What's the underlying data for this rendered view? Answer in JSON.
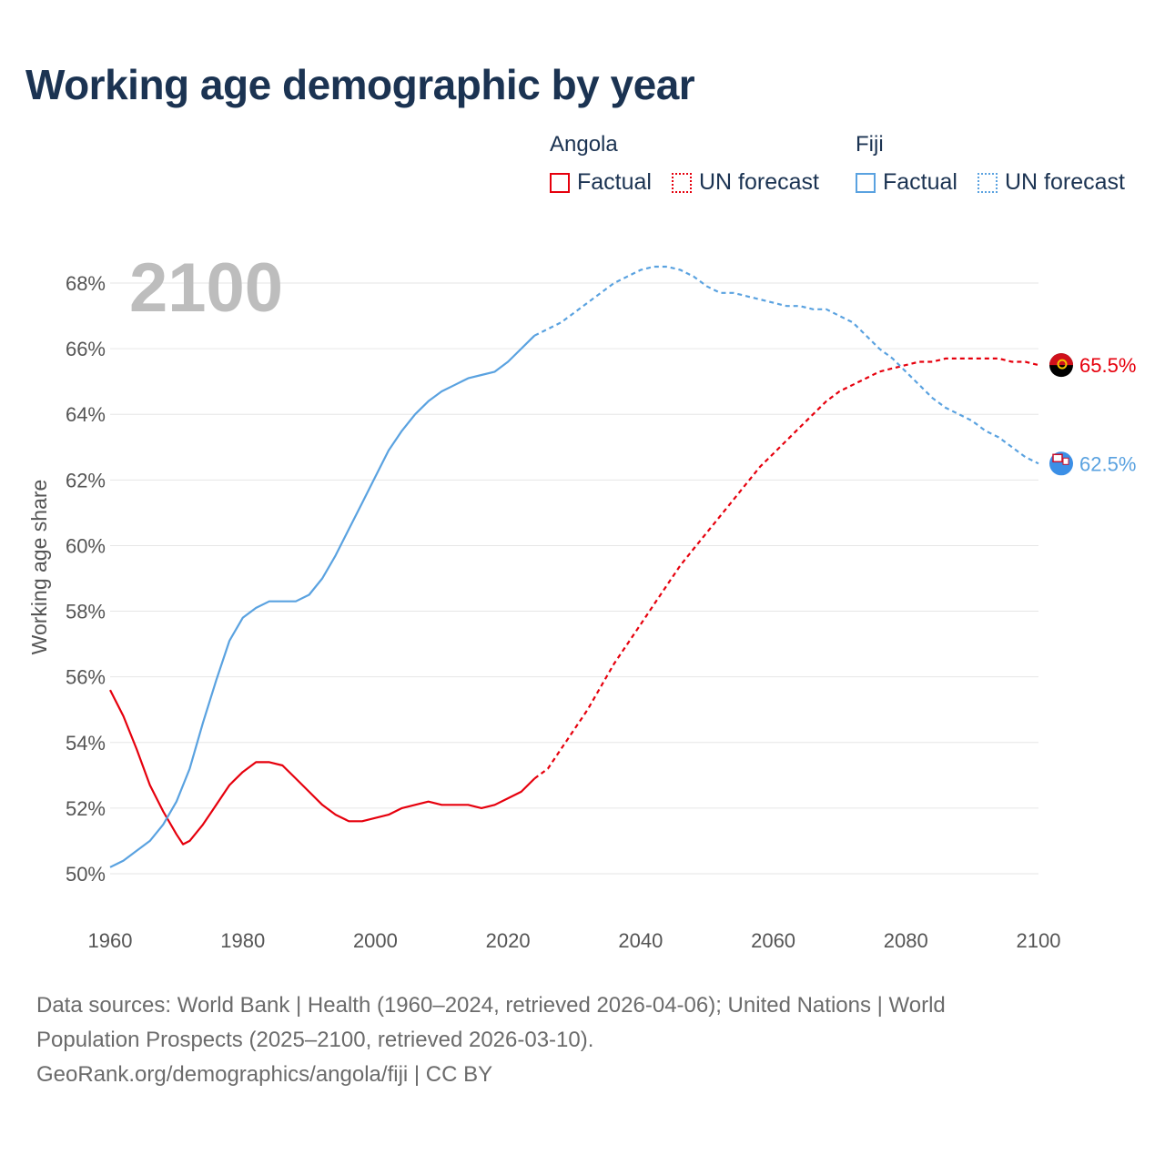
{
  "title": "Working age demographic by year",
  "legend": {
    "groups": [
      {
        "name": "Angola",
        "factual_label": "Factual",
        "forecast_label": "UN forecast",
        "color": "#e6000d"
      },
      {
        "name": "Fiji",
        "factual_label": "Factual",
        "forecast_label": "UN forecast",
        "color": "#5aa2e0"
      }
    ]
  },
  "footer": {
    "line1": "Data sources: World Bank | Health (1960–2024, retrieved 2026-04-06); United Nations | World",
    "line2": "Population Prospects (2025–2100, retrieved 2026-03-10).",
    "line3": "GeoRank.org/demographics/angola/fiji | CC BY"
  },
  "chart_data": {
    "type": "line",
    "title": "Working age demographic by year",
    "current_year_label": "2100",
    "xlabel": "",
    "ylabel": "Working age share",
    "xlim": [
      1960,
      2100
    ],
    "ylim": [
      49,
      69
    ],
    "x_ticks": [
      1960,
      1980,
      2000,
      2020,
      2040,
      2060,
      2080,
      2100
    ],
    "x_tick_labels": [
      "1960",
      "1980",
      "2000",
      "2020",
      "2040",
      "2060",
      "2080",
      "2100"
    ],
    "y_ticks": [
      50,
      52,
      54,
      56,
      58,
      60,
      62,
      64,
      66,
      68
    ],
    "y_tick_labels": [
      "50%",
      "52%",
      "54%",
      "56%",
      "58%",
      "60%",
      "62%",
      "64%",
      "66%",
      "68%"
    ],
    "grid": true,
    "forecast_start_year": 2024,
    "series": [
      {
        "name": "Angola",
        "color": "#e6000d",
        "end_label": "65.5%",
        "end_value": 65.5,
        "flag_icon": "angola-flag-icon",
        "points": [
          [
            1960,
            55.6
          ],
          [
            1962,
            54.8
          ],
          [
            1964,
            53.8
          ],
          [
            1966,
            52.7
          ],
          [
            1968,
            51.9
          ],
          [
            1970,
            51.2
          ],
          [
            1971,
            50.9
          ],
          [
            1972,
            51.0
          ],
          [
            1974,
            51.5
          ],
          [
            1976,
            52.1
          ],
          [
            1978,
            52.7
          ],
          [
            1980,
            53.1
          ],
          [
            1982,
            53.4
          ],
          [
            1984,
            53.4
          ],
          [
            1986,
            53.3
          ],
          [
            1988,
            52.9
          ],
          [
            1990,
            52.5
          ],
          [
            1992,
            52.1
          ],
          [
            1994,
            51.8
          ],
          [
            1996,
            51.6
          ],
          [
            1998,
            51.6
          ],
          [
            2000,
            51.7
          ],
          [
            2002,
            51.8
          ],
          [
            2004,
            52.0
          ],
          [
            2006,
            52.1
          ],
          [
            2008,
            52.2
          ],
          [
            2010,
            52.1
          ],
          [
            2012,
            52.1
          ],
          [
            2014,
            52.1
          ],
          [
            2016,
            52.0
          ],
          [
            2018,
            52.1
          ],
          [
            2020,
            52.3
          ],
          [
            2022,
            52.5
          ],
          [
            2024,
            52.9
          ],
          [
            2026,
            53.2
          ],
          [
            2028,
            53.8
          ],
          [
            2030,
            54.4
          ],
          [
            2032,
            55.0
          ],
          [
            2034,
            55.7
          ],
          [
            2036,
            56.4
          ],
          [
            2038,
            57.0
          ],
          [
            2040,
            57.6
          ],
          [
            2042,
            58.2
          ],
          [
            2044,
            58.8
          ],
          [
            2046,
            59.4
          ],
          [
            2048,
            59.9
          ],
          [
            2050,
            60.4
          ],
          [
            2052,
            60.9
          ],
          [
            2054,
            61.4
          ],
          [
            2056,
            61.9
          ],
          [
            2058,
            62.4
          ],
          [
            2060,
            62.8
          ],
          [
            2062,
            63.2
          ],
          [
            2064,
            63.6
          ],
          [
            2066,
            64.0
          ],
          [
            2068,
            64.4
          ],
          [
            2070,
            64.7
          ],
          [
            2072,
            64.9
          ],
          [
            2074,
            65.1
          ],
          [
            2076,
            65.3
          ],
          [
            2078,
            65.4
          ],
          [
            2080,
            65.5
          ],
          [
            2082,
            65.6
          ],
          [
            2084,
            65.6
          ],
          [
            2086,
            65.7
          ],
          [
            2090,
            65.7
          ],
          [
            2094,
            65.7
          ],
          [
            2096,
            65.6
          ],
          [
            2098,
            65.6
          ],
          [
            2100,
            65.5
          ]
        ]
      },
      {
        "name": "Fiji",
        "color": "#5aa2e0",
        "end_label": "62.5%",
        "end_value": 62.5,
        "flag_icon": "fiji-flag-icon",
        "points": [
          [
            1960,
            50.2
          ],
          [
            1962,
            50.4
          ],
          [
            1964,
            50.7
          ],
          [
            1966,
            51.0
          ],
          [
            1968,
            51.5
          ],
          [
            1970,
            52.2
          ],
          [
            1972,
            53.2
          ],
          [
            1974,
            54.6
          ],
          [
            1976,
            55.9
          ],
          [
            1978,
            57.1
          ],
          [
            1980,
            57.8
          ],
          [
            1982,
            58.1
          ],
          [
            1984,
            58.3
          ],
          [
            1986,
            58.3
          ],
          [
            1988,
            58.3
          ],
          [
            1990,
            58.5
          ],
          [
            1992,
            59.0
          ],
          [
            1994,
            59.7
          ],
          [
            1996,
            60.5
          ],
          [
            1998,
            61.3
          ],
          [
            2000,
            62.1
          ],
          [
            2002,
            62.9
          ],
          [
            2004,
            63.5
          ],
          [
            2006,
            64.0
          ],
          [
            2008,
            64.4
          ],
          [
            2010,
            64.7
          ],
          [
            2012,
            64.9
          ],
          [
            2014,
            65.1
          ],
          [
            2016,
            65.2
          ],
          [
            2018,
            65.3
          ],
          [
            2020,
            65.6
          ],
          [
            2022,
            66.0
          ],
          [
            2024,
            66.4
          ],
          [
            2026,
            66.6
          ],
          [
            2028,
            66.8
          ],
          [
            2030,
            67.1
          ],
          [
            2032,
            67.4
          ],
          [
            2034,
            67.7
          ],
          [
            2036,
            68.0
          ],
          [
            2038,
            68.2
          ],
          [
            2040,
            68.4
          ],
          [
            2042,
            68.5
          ],
          [
            2044,
            68.5
          ],
          [
            2046,
            68.4
          ],
          [
            2048,
            68.2
          ],
          [
            2050,
            67.9
          ],
          [
            2052,
            67.7
          ],
          [
            2054,
            67.7
          ],
          [
            2056,
            67.6
          ],
          [
            2058,
            67.5
          ],
          [
            2060,
            67.4
          ],
          [
            2062,
            67.3
          ],
          [
            2064,
            67.3
          ],
          [
            2066,
            67.2
          ],
          [
            2068,
            67.2
          ],
          [
            2070,
            67.0
          ],
          [
            2072,
            66.8
          ],
          [
            2074,
            66.4
          ],
          [
            2076,
            66.0
          ],
          [
            2078,
            65.7
          ],
          [
            2080,
            65.3
          ],
          [
            2082,
            64.9
          ],
          [
            2084,
            64.5
          ],
          [
            2086,
            64.2
          ],
          [
            2088,
            64.0
          ],
          [
            2090,
            63.8
          ],
          [
            2092,
            63.5
          ],
          [
            2094,
            63.3
          ],
          [
            2096,
            63.0
          ],
          [
            2098,
            62.7
          ],
          [
            2100,
            62.5
          ]
        ]
      }
    ]
  }
}
